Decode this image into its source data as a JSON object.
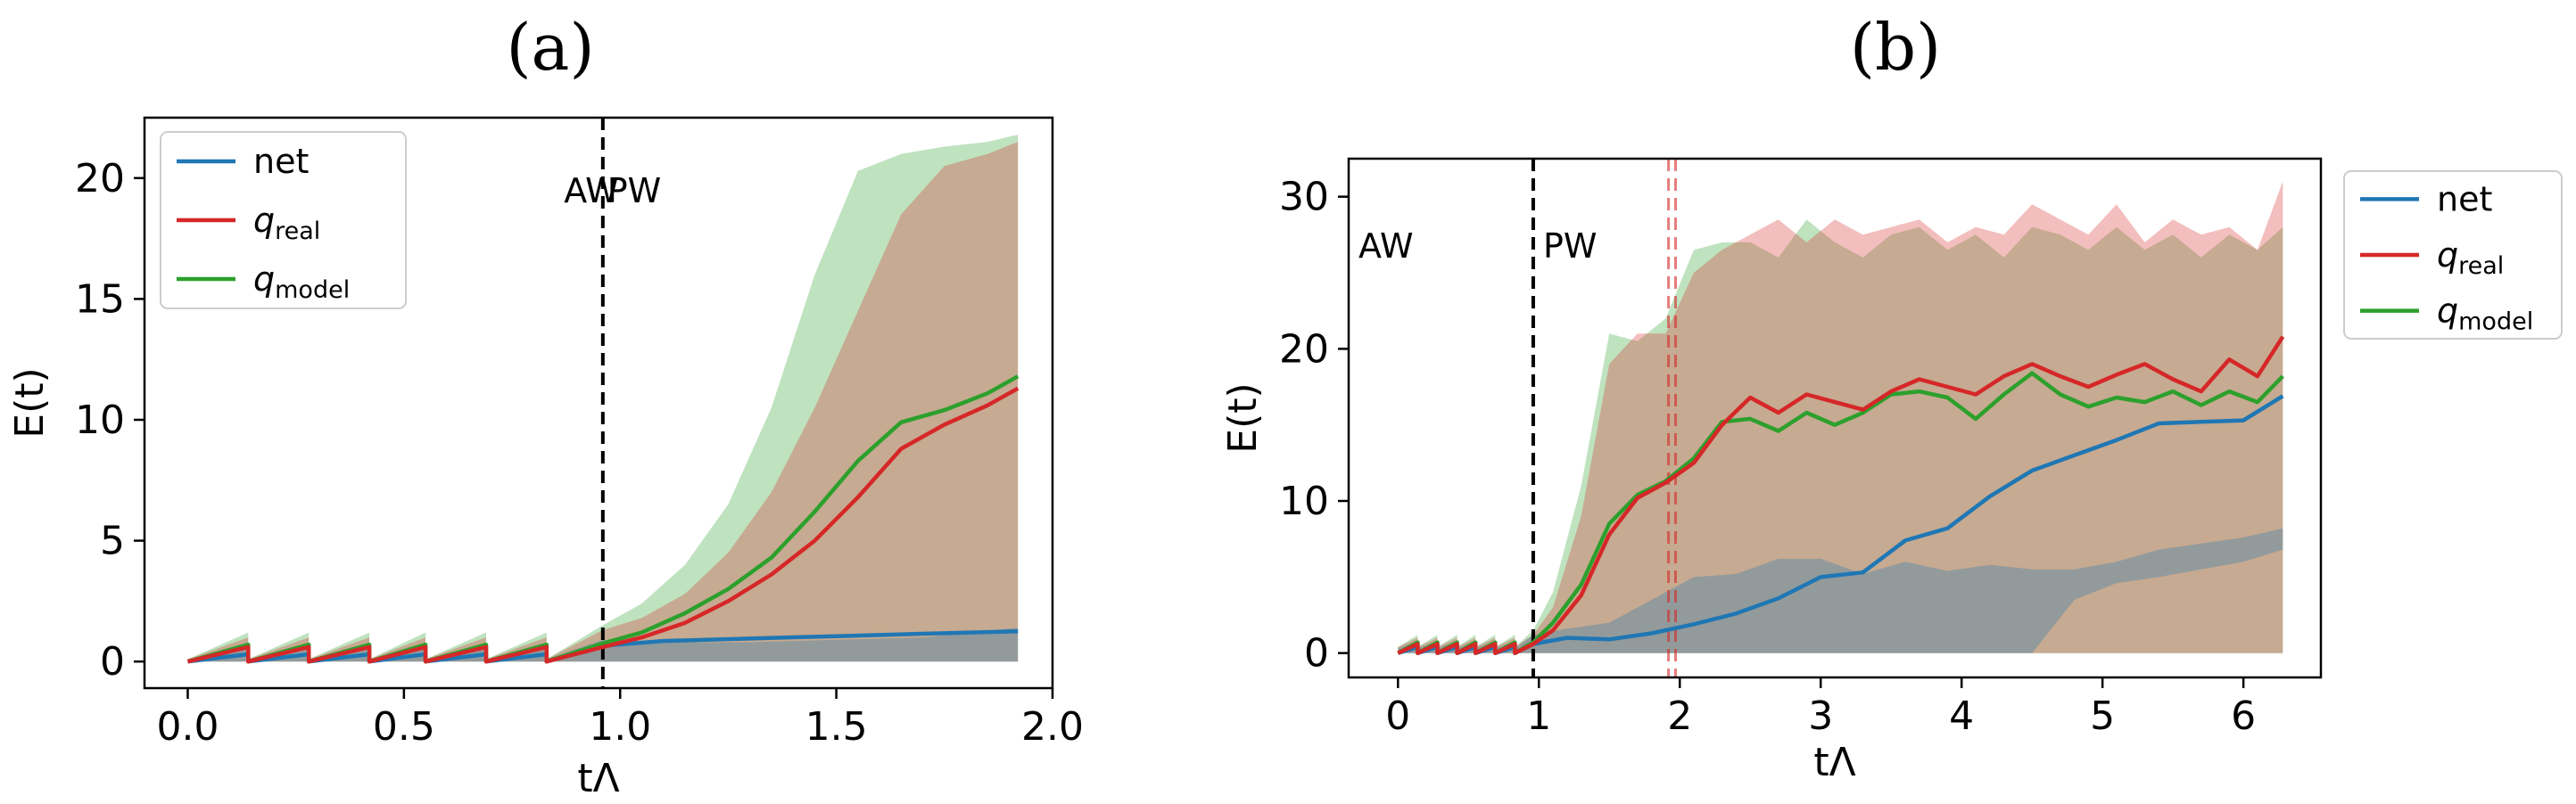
{
  "chart_data": [
    {
      "type": "line",
      "panel_title": "(a)",
      "xlabel": "tΛ",
      "ylabel": "E(t)",
      "xlim": [
        -0.1,
        2.0
      ],
      "ylim": [
        -1.1,
        22.5
      ],
      "xticks": [
        0.0,
        0.5,
        1.0,
        1.5,
        2.0
      ],
      "xtick_labels": [
        "0.0",
        "0.5",
        "1.0",
        "1.5",
        "2.0"
      ],
      "yticks": [
        0,
        5,
        10,
        15,
        20
      ],
      "ytick_labels": [
        "0",
        "5",
        "10",
        "15",
        "20"
      ],
      "legend_location": "top-left",
      "vlines": [
        {
          "x": 0.96,
          "color": "#000000",
          "style": "dashed"
        }
      ],
      "annotations": [
        {
          "text": "AW",
          "x": 0.87,
          "y": 19.0
        },
        {
          "text": "PW",
          "x": 0.97,
          "y": 19.0
        }
      ],
      "series": [
        {
          "name": "net",
          "italic": false,
          "subscript": "",
          "color": "#1f77b4",
          "x": [
            0.0,
            0.14,
            0.14,
            0.28,
            0.28,
            0.42,
            0.42,
            0.55,
            0.55,
            0.69,
            0.69,
            0.83,
            0.83,
            0.96,
            1.1,
            1.3,
            1.5,
            1.7,
            1.92
          ],
          "values": [
            0.0,
            0.3,
            0.0,
            0.3,
            0.0,
            0.3,
            0.0,
            0.3,
            0.0,
            0.3,
            0.0,
            0.3,
            0.0,
            0.65,
            0.85,
            0.95,
            1.05,
            1.15,
            1.25
          ],
          "band_lower": [
            0,
            0,
            0,
            0,
            0,
            0,
            0,
            0,
            0,
            0,
            0,
            0,
            0,
            0,
            0,
            0,
            0,
            0,
            0
          ],
          "band_upper": [
            0.1,
            0.5,
            0.1,
            0.5,
            0.1,
            0.5,
            0.1,
            0.5,
            0.1,
            0.5,
            0.1,
            0.5,
            0.1,
            0.9,
            0.8,
            0.8,
            0.9,
            1.0,
            1.4
          ]
        },
        {
          "name": "q",
          "italic": true,
          "subscript": "real",
          "color": "#d62728",
          "x": [
            0.0,
            0.14,
            0.14,
            0.28,
            0.28,
            0.42,
            0.42,
            0.55,
            0.55,
            0.69,
            0.69,
            0.83,
            0.83,
            0.96,
            1.05,
            1.15,
            1.25,
            1.35,
            1.45,
            1.55,
            1.65,
            1.75,
            1.85,
            1.92
          ],
          "values": [
            0.0,
            0.6,
            0.0,
            0.6,
            0.0,
            0.6,
            0.0,
            0.6,
            0.0,
            0.6,
            0.0,
            0.6,
            0.0,
            0.6,
            1.0,
            1.6,
            2.5,
            3.6,
            5.0,
            6.8,
            8.8,
            9.8,
            10.6,
            11.3
          ],
          "band_lower": [
            0,
            0,
            0,
            0,
            0,
            0,
            0,
            0,
            0,
            0,
            0,
            0,
            0,
            0,
            0,
            0,
            0,
            0,
            0,
            0,
            0,
            0,
            0,
            0
          ],
          "band_upper": [
            0.1,
            1.0,
            0.1,
            1.0,
            0.1,
            1.0,
            0.1,
            1.0,
            0.1,
            1.0,
            0.1,
            1.0,
            0.1,
            1.3,
            1.8,
            2.8,
            4.5,
            7.0,
            10.5,
            14.5,
            18.5,
            20.5,
            21.0,
            21.5
          ]
        },
        {
          "name": "q",
          "italic": true,
          "subscript": "model",
          "color": "#2ca02c",
          "x": [
            0.0,
            0.14,
            0.14,
            0.28,
            0.28,
            0.42,
            0.42,
            0.55,
            0.55,
            0.69,
            0.69,
            0.83,
            0.83,
            0.96,
            1.05,
            1.15,
            1.25,
            1.35,
            1.45,
            1.55,
            1.65,
            1.75,
            1.85,
            1.92
          ],
          "values": [
            0.0,
            0.7,
            0.0,
            0.7,
            0.0,
            0.7,
            0.0,
            0.7,
            0.0,
            0.7,
            0.0,
            0.7,
            0.0,
            0.75,
            1.2,
            2.0,
            3.0,
            4.3,
            6.2,
            8.3,
            9.9,
            10.4,
            11.1,
            11.8
          ],
          "band_lower": [
            0,
            0,
            0,
            0,
            0,
            0,
            0,
            0,
            0,
            0,
            0,
            0,
            0,
            0,
            0,
            0,
            0,
            0,
            0,
            0,
            0,
            0,
            0,
            0
          ],
          "band_upper": [
            0.1,
            1.2,
            0.1,
            1.2,
            0.1,
            1.2,
            0.1,
            1.2,
            0.1,
            1.2,
            0.1,
            1.2,
            0.1,
            1.5,
            2.4,
            4.0,
            6.5,
            10.5,
            16.0,
            20.3,
            21.0,
            21.3,
            21.5,
            21.8
          ]
        }
      ]
    },
    {
      "type": "line",
      "panel_title": "(b)",
      "xlabel": "tΛ",
      "ylabel": "E(t)",
      "xlim": [
        -0.35,
        6.55
      ],
      "ylim": [
        -1.6,
        32.5
      ],
      "xticks": [
        0,
        1,
        2,
        3,
        4,
        5,
        6
      ],
      "xtick_labels": [
        "0",
        "1",
        "2",
        "3",
        "4",
        "5",
        "6"
      ],
      "yticks": [
        0,
        10,
        20,
        30
      ],
      "ytick_labels": [
        "0",
        "10",
        "20",
        "30"
      ],
      "legend_location": "outside-right",
      "vlines": [
        {
          "x": 0.96,
          "color": "#000000",
          "style": "dashed"
        },
        {
          "x": 1.92,
          "color": "#d62728",
          "style": "dashed"
        },
        {
          "x": 1.97,
          "color": "#d62728",
          "style": "dashed"
        }
      ],
      "annotations": [
        {
          "text": "AW",
          "x": -0.28,
          "y": 26.0
        },
        {
          "text": "PW",
          "x": 1.03,
          "y": 26.0
        }
      ],
      "series": [
        {
          "name": "net",
          "italic": false,
          "subscript": "",
          "color": "#1f77b4",
          "x": [
            0,
            0.14,
            0.14,
            0.28,
            0.28,
            0.42,
            0.42,
            0.55,
            0.55,
            0.69,
            0.69,
            0.83,
            0.83,
            0.96,
            1.2,
            1.5,
            1.8,
            2.1,
            2.4,
            2.7,
            3.0,
            3.3,
            3.6,
            3.9,
            4.2,
            4.5,
            4.8,
            5.1,
            5.4,
            5.7,
            6.0,
            6.28
          ],
          "values": [
            0,
            0.4,
            0,
            0.4,
            0,
            0.4,
            0,
            0.4,
            0,
            0.4,
            0,
            0.4,
            0,
            0.6,
            1.0,
            0.9,
            1.3,
            1.9,
            2.6,
            3.6,
            5.0,
            5.3,
            7.4,
            8.2,
            10.3,
            12.0,
            13.0,
            14.0,
            15.1,
            15.2,
            15.3,
            16.9
          ],
          "band_lower": [
            0,
            0,
            0,
            0,
            0,
            0,
            0,
            0,
            0,
            0,
            0,
            0,
            0,
            0,
            0,
            0,
            0,
            0,
            0,
            0,
            0,
            0,
            0,
            0,
            0,
            0,
            3.5,
            4.6,
            5.0,
            5.5,
            6.0,
            6.8
          ],
          "band_upper": [
            0.3,
            0.8,
            0.3,
            0.8,
            0.3,
            0.8,
            0.3,
            0.8,
            0.3,
            0.8,
            0.3,
            0.8,
            0.3,
            1.2,
            1.6,
            2.0,
            3.5,
            5.0,
            5.2,
            6.2,
            6.2,
            5.2,
            6.0,
            5.4,
            5.8,
            5.5,
            5.5,
            6.0,
            6.8,
            7.2,
            7.6,
            8.2
          ]
        },
        {
          "name": "q",
          "italic": true,
          "subscript": "real",
          "color": "#d62728",
          "x": [
            0,
            0.14,
            0.14,
            0.28,
            0.28,
            0.42,
            0.42,
            0.55,
            0.55,
            0.69,
            0.69,
            0.83,
            0.83,
            0.96,
            1.1,
            1.3,
            1.5,
            1.7,
            1.9,
            2.1,
            2.3,
            2.5,
            2.7,
            2.9,
            3.1,
            3.3,
            3.5,
            3.7,
            3.9,
            4.1,
            4.3,
            4.5,
            4.7,
            4.9,
            5.1,
            5.3,
            5.5,
            5.7,
            5.9,
            6.1,
            6.28
          ],
          "values": [
            0,
            0.6,
            0,
            0.6,
            0,
            0.6,
            0,
            0.6,
            0,
            0.6,
            0,
            0.6,
            0,
            0.6,
            1.5,
            3.8,
            7.8,
            10.2,
            11.2,
            12.5,
            15.0,
            16.8,
            15.8,
            17.0,
            16.5,
            16.0,
            17.2,
            18.0,
            17.5,
            17.0,
            18.2,
            19.0,
            18.2,
            17.5,
            18.3,
            19.0,
            18.0,
            17.2,
            19.3,
            18.2,
            20.8
          ],
          "band_lower": [
            0,
            0,
            0,
            0,
            0,
            0,
            0,
            0,
            0,
            0,
            0,
            0,
            0,
            0,
            0,
            0,
            0,
            0,
            0,
            0,
            0,
            0,
            0,
            0,
            0,
            0,
            0,
            0,
            0,
            0,
            0,
            0,
            0,
            0,
            0,
            0,
            0,
            0,
            0,
            0,
            0
          ],
          "band_upper": [
            0.4,
            1.0,
            0.4,
            1.0,
            0.4,
            1.0,
            0.4,
            1.0,
            0.4,
            1.0,
            0.4,
            1.0,
            0.4,
            1.2,
            3.0,
            9.0,
            19.0,
            21.0,
            21.0,
            25.0,
            26.5,
            27.5,
            28.5,
            27.0,
            28.5,
            27.5,
            28.0,
            28.5,
            27.0,
            28.0,
            27.5,
            29.5,
            28.5,
            27.5,
            29.5,
            27.0,
            28.5,
            27.5,
            28.0,
            26.5,
            31.0
          ]
        },
        {
          "name": "q",
          "italic": true,
          "subscript": "model",
          "color": "#2ca02c",
          "x": [
            0,
            0.14,
            0.14,
            0.28,
            0.28,
            0.42,
            0.42,
            0.55,
            0.55,
            0.69,
            0.69,
            0.83,
            0.83,
            0.96,
            1.1,
            1.3,
            1.5,
            1.7,
            1.9,
            2.1,
            2.3,
            2.5,
            2.7,
            2.9,
            3.1,
            3.3,
            3.5,
            3.7,
            3.9,
            4.1,
            4.3,
            4.5,
            4.7,
            4.9,
            5.1,
            5.3,
            5.5,
            5.7,
            5.9,
            6.1,
            6.28
          ],
          "values": [
            0,
            0.7,
            0,
            0.7,
            0,
            0.7,
            0,
            0.7,
            0,
            0.7,
            0,
            0.7,
            0,
            0.7,
            2.0,
            4.5,
            8.5,
            10.4,
            11.3,
            12.8,
            15.2,
            15.4,
            14.6,
            15.8,
            15.0,
            15.8,
            17.0,
            17.2,
            16.8,
            15.4,
            17.0,
            18.4,
            17.0,
            16.2,
            16.8,
            16.5,
            17.2,
            16.3,
            17.2,
            16.5,
            18.2
          ],
          "band_lower": [
            0,
            0,
            0,
            0,
            0,
            0,
            0,
            0,
            0,
            0,
            0,
            0,
            0,
            0,
            0,
            0,
            0,
            0,
            0,
            0,
            0,
            0,
            0,
            0,
            0,
            0,
            0,
            0,
            0,
            0,
            0,
            0,
            0,
            0,
            0,
            0,
            0,
            0,
            0,
            0,
            0
          ],
          "band_upper": [
            0.4,
            1.2,
            0.4,
            1.2,
            0.4,
            1.2,
            0.4,
            1.2,
            0.4,
            1.2,
            0.4,
            1.2,
            0.4,
            1.5,
            4.0,
            11.0,
            21.0,
            20.5,
            22.0,
            26.5,
            27.0,
            27.0,
            26.0,
            28.5,
            27.0,
            26.0,
            27.5,
            28.0,
            26.5,
            27.5,
            26.0,
            28.0,
            27.5,
            26.5,
            28.0,
            26.5,
            27.5,
            26.0,
            27.5,
            26.5,
            28.0
          ]
        }
      ]
    }
  ]
}
